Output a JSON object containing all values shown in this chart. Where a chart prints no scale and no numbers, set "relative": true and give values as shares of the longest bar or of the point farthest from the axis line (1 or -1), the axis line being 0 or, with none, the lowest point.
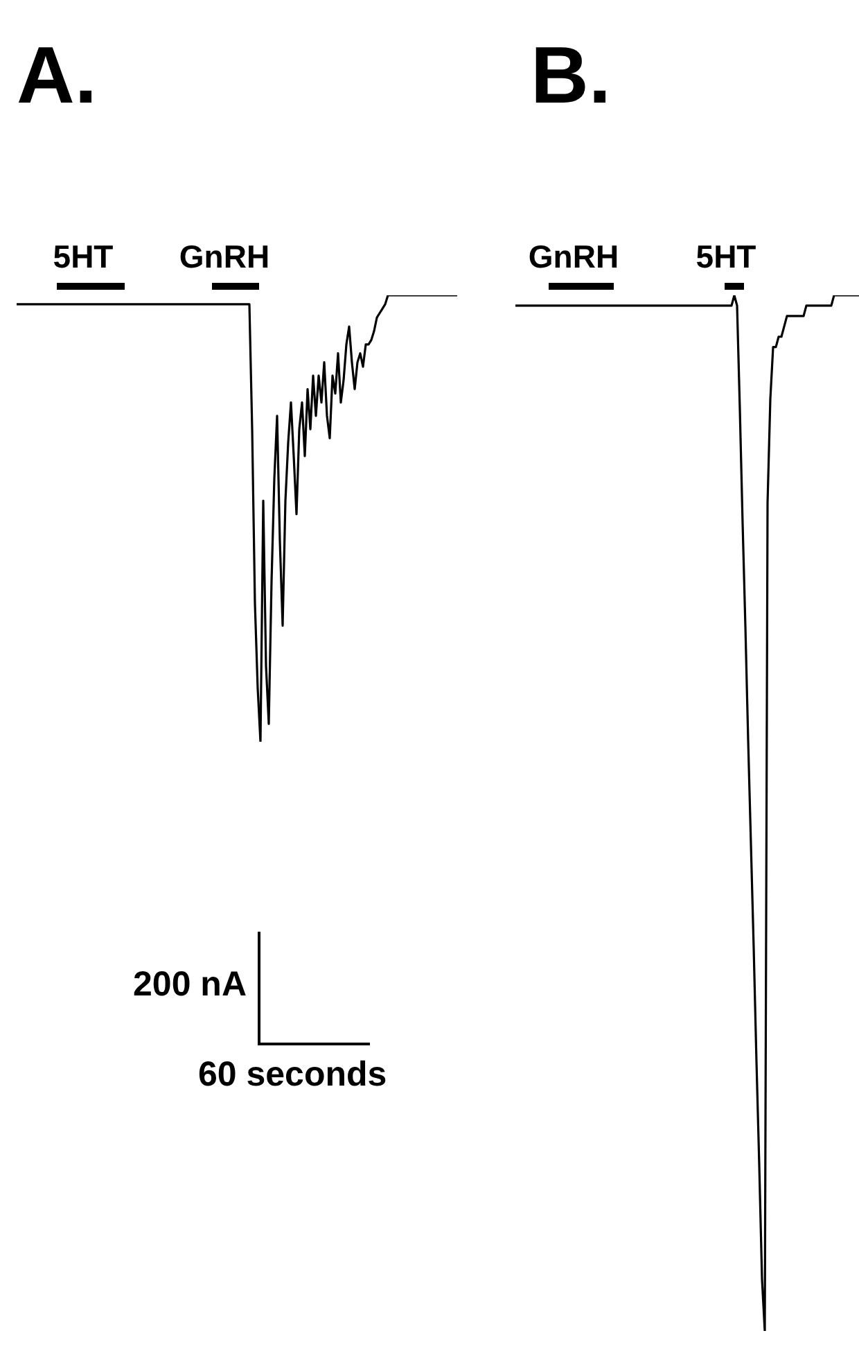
{
  "chart_data": [
    {
      "type": "line",
      "title": "A.",
      "relative": true,
      "grid": false,
      "legend": false,
      "marker": "none",
      "line_style": "solid",
      "categories": [
        null,
        null,
        null,
        null,
        null,
        null,
        null,
        null,
        null,
        null,
        null,
        null,
        null,
        null,
        null,
        null,
        null,
        null,
        null,
        null,
        null,
        null,
        null,
        null,
        null,
        null,
        null,
        null,
        null,
        null,
        null,
        null,
        null,
        null,
        null,
        null,
        null,
        null,
        null,
        null,
        null,
        null,
        null,
        null,
        null,
        null,
        null,
        null,
        null,
        null,
        null,
        null,
        null,
        null,
        null,
        null,
        null,
        null,
        null,
        null,
        null,
        null,
        null,
        null,
        null,
        null,
        null,
        null,
        null,
        null,
        null,
        null,
        null,
        null,
        null,
        null,
        null,
        null,
        null,
        null,
        null,
        null,
        null,
        null,
        null,
        null,
        null,
        null,
        null,
        null,
        null,
        null,
        null,
        null,
        null,
        null,
        null,
        null,
        null,
        null,
        null,
        null,
        null,
        null,
        null,
        null,
        null,
        null,
        null,
        null,
        null,
        null,
        null,
        null,
        null,
        null,
        null,
        null,
        null,
        null,
        null,
        null,
        null,
        null,
        null,
        null,
        null,
        null,
        null,
        null,
        null,
        null,
        null,
        null,
        null,
        null,
        null,
        null,
        null,
        null,
        null,
        null,
        null,
        null,
        null,
        null,
        null,
        null,
        null,
        null,
        null,
        null,
        null,
        null,
        null,
        null,
        null,
        null,
        null,
        null
      ],
      "series": [
        {
          "color": "#000000",
          "values": [
            0.98,
            0.98,
            0.98,
            0.98,
            0.98,
            0.98,
            0.98,
            0.98,
            0.98,
            0.98,
            0.98,
            0.98,
            0.98,
            0.98,
            0.98,
            0.98,
            0.98,
            0.98,
            0.98,
            0.98,
            0.98,
            0.98,
            0.98,
            0.98,
            0.98,
            0.98,
            0.98,
            0.98,
            0.98,
            0.98,
            0.98,
            0.98,
            0.98,
            0.98,
            0.98,
            0.98,
            0.98,
            0.98,
            0.98,
            0.98,
            0.98,
            0.98,
            0.98,
            0.98,
            0.98,
            0.98,
            0.98,
            0.98,
            0.98,
            0.98,
            0.98,
            0.98,
            0.98,
            0.98,
            0.98,
            0.98,
            0.98,
            0.98,
            0.98,
            0.98,
            0.98,
            0.98,
            0.98,
            0.98,
            0.98,
            0.98,
            0.98,
            0.98,
            0.98,
            0.98,
            0.98,
            0.98,
            0.98,
            0.98,
            0.98,
            0.98,
            0.98,
            0.98,
            0.98,
            0.98,
            0.98,
            0.98,
            0.98,
            0.98,
            0.98,
            0.7,
            0.31,
            0.12,
            0,
            0.54,
            0.17,
            0.04,
            0.36,
            0.59,
            0.73,
            0.45,
            0.26,
            0.54,
            0.67,
            0.76,
            0.64,
            0.51,
            0.7,
            0.76,
            0.64,
            0.79,
            0.7,
            0.82,
            0.73,
            0.82,
            0.76,
            0.85,
            0.73,
            0.68,
            0.82,
            0.78,
            0.87,
            0.76,
            0.81,
            0.89,
            0.93,
            0.85,
            0.79,
            0.85,
            0.87,
            0.84,
            0.89,
            0.89,
            0.9,
            0.92,
            0.95,
            0.96,
            0.97,
            0.98,
            1,
            1,
            1,
            1,
            1,
            1,
            1,
            1,
            1,
            1,
            1,
            1,
            1,
            1,
            1,
            1,
            1,
            1,
            1,
            1,
            1,
            1,
            1,
            1,
            1,
            1
          ]
        }
      ],
      "annotations": [
        "5HT",
        "GnRH",
        "200 nA",
        "60 seconds"
      ]
    },
    {
      "type": "line",
      "title": "B.",
      "relative": true,
      "grid": false,
      "legend": false,
      "marker": "none",
      "line_style": "solid",
      "categories": [
        null,
        null,
        null,
        null,
        null,
        null,
        null,
        null,
        null,
        null,
        null,
        null,
        null,
        null,
        null,
        null,
        null,
        null,
        null,
        null,
        null,
        null,
        null,
        null,
        null,
        null,
        null,
        null,
        null,
        null,
        null,
        null,
        null,
        null,
        null,
        null,
        null,
        null,
        null,
        null,
        null,
        null,
        null,
        null,
        null,
        null,
        null,
        null,
        null,
        null,
        null,
        null,
        null,
        null,
        null,
        null,
        null,
        null,
        null,
        null,
        null,
        null,
        null,
        null,
        null,
        null,
        null,
        null,
        null,
        null,
        null,
        null,
        null,
        null,
        null,
        null,
        null,
        null,
        null,
        null,
        null,
        null,
        null,
        null,
        null,
        null,
        null,
        null,
        null,
        null,
        null,
        null,
        null,
        null,
        null,
        null,
        null,
        null,
        null,
        null,
        null,
        null,
        null,
        null,
        null,
        null,
        null,
        null,
        null,
        null,
        null,
        null,
        null,
        null,
        null,
        null,
        null,
        null,
        null,
        null,
        null,
        null,
        null,
        null,
        null
      ],
      "series": [
        {
          "color": "#000000",
          "values": [
            0.99,
            0.99,
            0.99,
            0.99,
            0.99,
            0.99,
            0.99,
            0.99,
            0.99,
            0.99,
            0.99,
            0.99,
            0.99,
            0.99,
            0.99,
            0.99,
            0.99,
            0.99,
            0.99,
            0.99,
            0.99,
            0.99,
            0.99,
            0.99,
            0.99,
            0.99,
            0.99,
            0.99,
            0.99,
            0.99,
            0.99,
            0.99,
            0.99,
            0.99,
            0.99,
            0.99,
            0.99,
            0.99,
            0.99,
            0.99,
            0.99,
            0.99,
            0.99,
            0.99,
            0.99,
            0.99,
            0.99,
            0.99,
            0.99,
            0.99,
            0.99,
            0.99,
            0.99,
            0.99,
            0.99,
            0.99,
            0.99,
            0.99,
            0.99,
            0.99,
            0.99,
            0.99,
            0.99,
            0.99,
            0.99,
            0.99,
            0.99,
            0.99,
            0.99,
            0.99,
            0.99,
            0.99,
            0.99,
            0.99,
            0.99,
            0.99,
            0.99,
            0.99,
            0.99,
            1.0,
            0.99,
            0.89,
            0.78,
            0.68,
            0.57,
            0.47,
            0.37,
            0.26,
            0.16,
            0.05,
            0,
            0.8,
            0.9,
            0.95,
            0.95,
            0.96,
            0.96,
            0.97,
            0.98,
            0.98,
            0.98,
            0.98,
            0.98,
            0.98,
            0.98,
            0.99,
            0.99,
            0.99,
            0.99,
            0.99,
            0.99,
            0.99,
            0.99,
            0.99,
            0.99,
            1.0,
            1.0,
            1.0,
            1.0,
            1.0,
            1.0,
            1.0,
            1.0,
            1.0,
            1.0
          ]
        }
      ],
      "annotations": [
        "GnRH",
        "5HT"
      ]
    }
  ]
}
